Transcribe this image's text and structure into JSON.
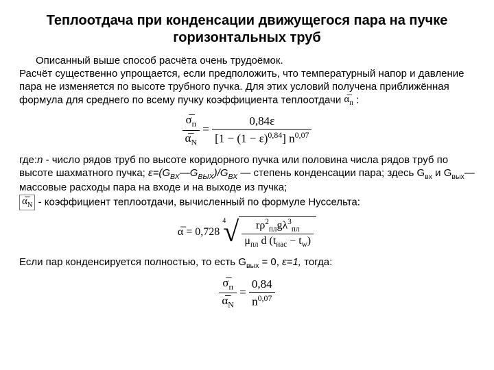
{
  "title": "Теплоотдача при конденсации движущегося пара на пучке горизонтальных труб",
  "para1_line1": "Описанный выше способ расчёта очень трудоёмок.",
  "para1_rest": "Расчёт существенно упрощается, если предположить, что температурный напор и давление пара не изменяется по высоте трубного пучка. Для этих условий получена приближённая формула для среднего по всему пучку коэффициента теплоотдачи ",
  "para1_sym": "α̅",
  "para1_sym_sub": "п",
  "para1_tail": " :",
  "formula1": {
    "lhs_num": "σ̅",
    "lhs_num_sub": "п",
    "lhs_den": "α̅",
    "lhs_den_sub": "N",
    "eq": " = ",
    "rhs_num": "0,84ε",
    "rhs_den_a": "[1 − (1 − ε)",
    "rhs_den_exp1": "0,84",
    "rhs_den_b": "] n",
    "rhs_den_exp2": "0,07"
  },
  "para2_a": "где:",
  "para2_it1": "n",
  "para2_b": " - число рядов труб по высоте коридорного пучка или половина числа рядов труб по высоте шахматного пучка; ",
  "para2_eps": "ε=(G",
  "para2_sub1": "ВХ",
  "para2_mid1": "—G",
  "para2_sub2": "ВЫХ",
  "para2_mid2": ")/G",
  "para2_sub3": "ВХ",
  "para2_c": " — степень конденсации пара; здесь G",
  "para2_sub4": "вх",
  "para2_d": " и G",
  "para2_sub5": "вых",
  "para2_e": "— массовые расходы пара на входе и на выходе из пучка;",
  "para2_sym": "α̅",
  "para2_sym_sub": "N",
  "para2_f": " - коэффициент теплоотдачи, вычисленный по формуле Нуссельта:",
  "formula2": {
    "lhs": "α̅ = 0,728",
    "root_index": "4",
    "num_a": "rρ",
    "num_sup1": "2",
    "num_sub1": "пл",
    "num_b": "gλ",
    "num_sup2": "3",
    "num_sub2": "пл",
    "den_a": "μ",
    "den_sub1": "пл",
    "den_b": " d (t",
    "den_sub2": "нас",
    "den_c": " − t",
    "den_sub3": "w",
    "den_d": ")"
  },
  "para3_a": "Если пар конденсируется полностью, то есть G",
  "para3_sub1": "вых",
  "para3_b": " = 0, ",
  "para3_eps": "ε=1,",
  "para3_c": "  тогда:",
  "formula3": {
    "lhs_num": "σ̅",
    "lhs_num_sub": "п",
    "lhs_den": "α̅",
    "lhs_den_sub": "N",
    "eq": " = ",
    "rhs_num": "0,84",
    "rhs_den_a": "n",
    "rhs_den_exp": "0,07"
  },
  "colors": {
    "text": "#000000",
    "bg": "#ffffff"
  }
}
